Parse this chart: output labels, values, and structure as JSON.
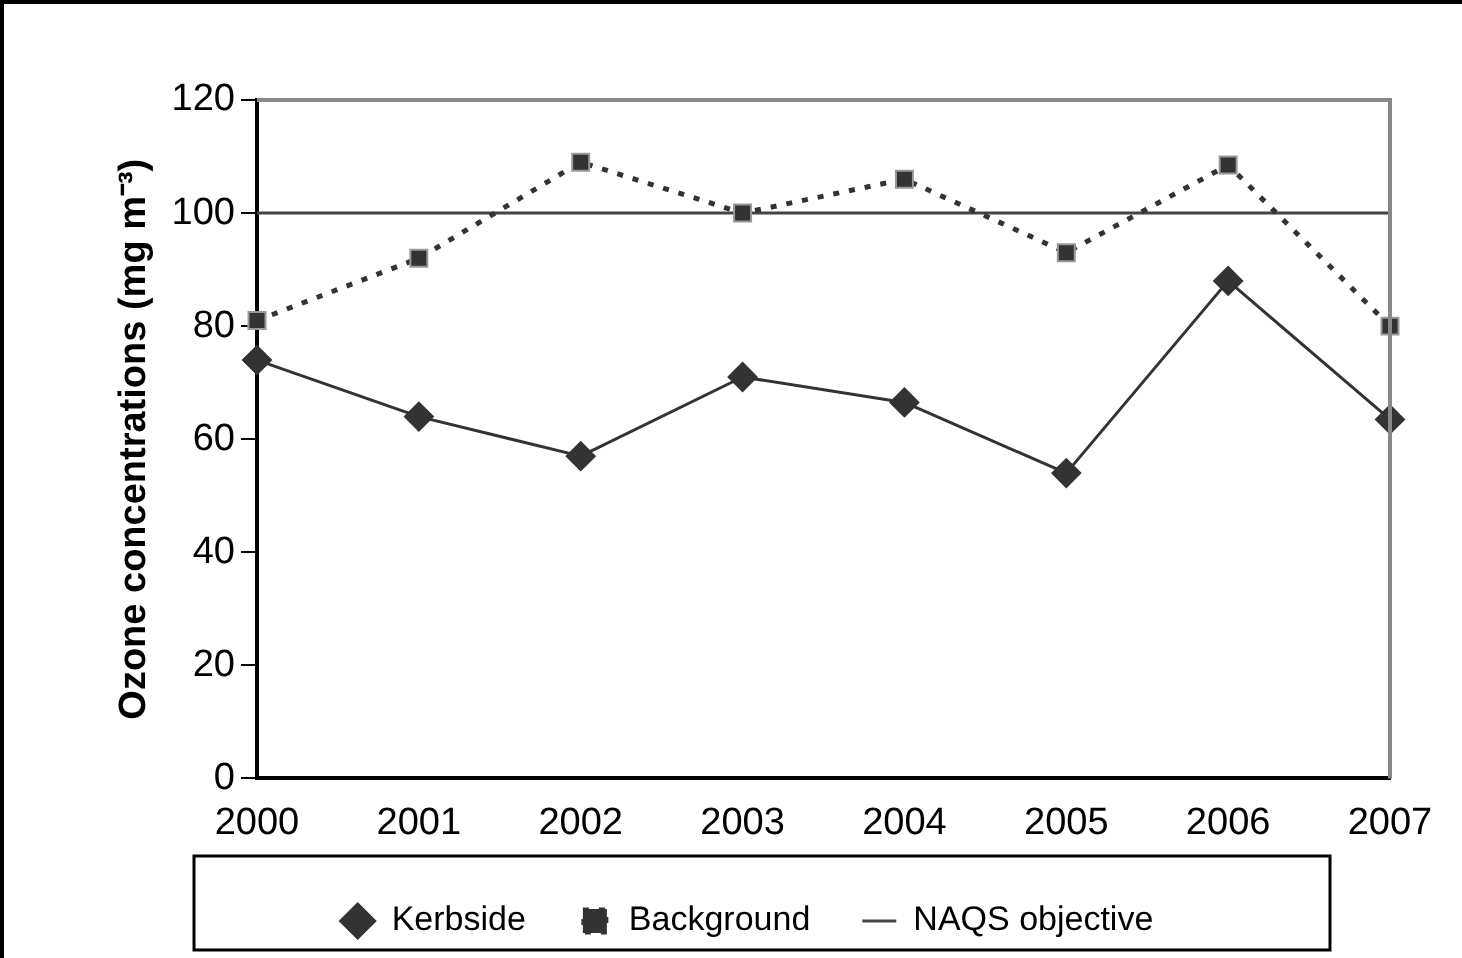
{
  "chart_data": {
    "type": "line",
    "ylabel": "Ozone concentrations (mg m⁻³)",
    "categories": [
      "2000",
      "2001",
      "2002",
      "2003",
      "2004",
      "2005",
      "2006",
      "2007"
    ],
    "series": [
      {
        "name": "Kerbside",
        "color": "#333333",
        "values": [
          74,
          64,
          57,
          71,
          66.5,
          54,
          88,
          63.5
        ],
        "marker": "diamond",
        "line_style": "solid"
      },
      {
        "name": "Background",
        "color": "#333333",
        "values": [
          81,
          92,
          109,
          100,
          106,
          93,
          108.5,
          80
        ],
        "marker": "square",
        "line_style": "dotted"
      },
      {
        "name": "NAQS objective",
        "color": "#444444",
        "values": [
          100,
          100,
          100,
          100,
          100,
          100,
          100,
          100
        ],
        "marker": "none",
        "line_style": "solid"
      }
    ],
    "ylim": [
      0,
      120
    ],
    "yticks": [
      0,
      20,
      40,
      60,
      80,
      100,
      120
    ],
    "grid": false,
    "legend": "bottom"
  }
}
